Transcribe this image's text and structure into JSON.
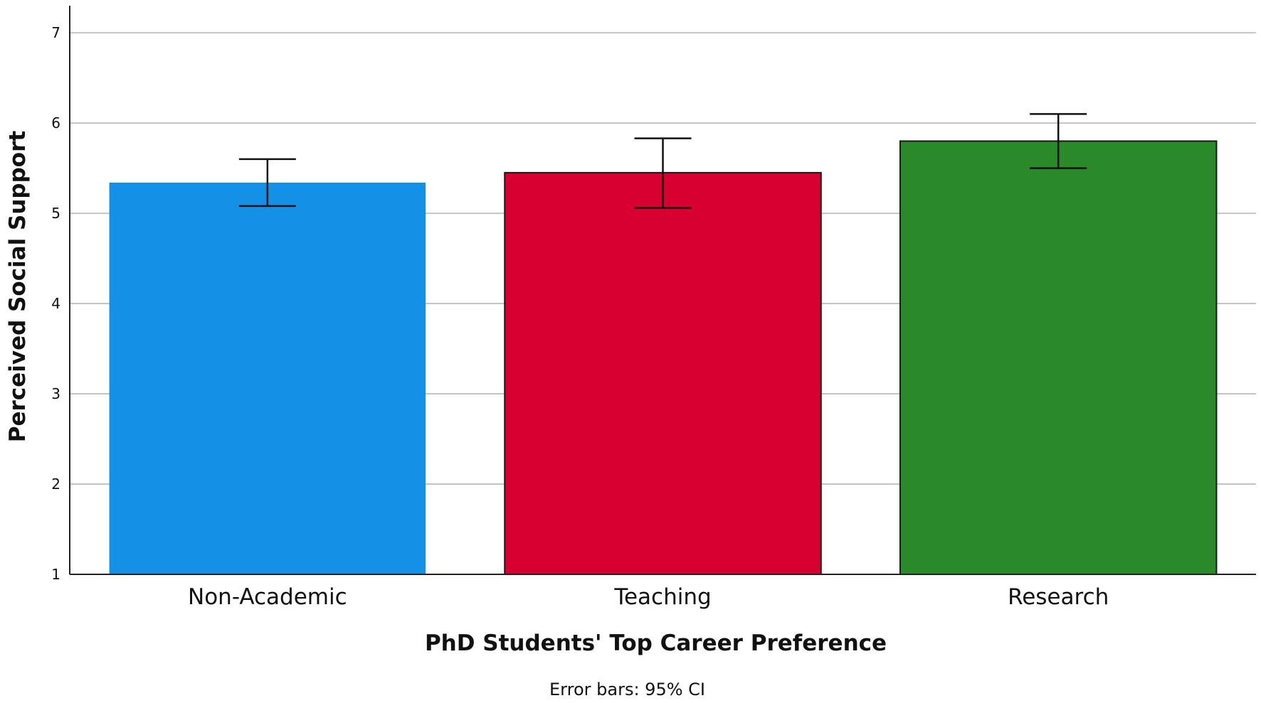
{
  "chart_data": {
    "type": "bar",
    "categories": [
      "Non-Academic",
      "Teaching",
      "Research"
    ],
    "values": [
      5.34,
      5.45,
      5.8
    ],
    "error_bars": [
      {
        "low": 5.08,
        "high": 5.6
      },
      {
        "low": 5.06,
        "high": 5.83
      },
      {
        "low": 5.5,
        "high": 6.1
      }
    ],
    "colors": [
      "#1490e6",
      "#d70030",
      "#2a8a2a"
    ],
    "xlabel": "PhD Students' Top Career Preference",
    "ylabel": "Perceived Social Support",
    "ylim": [
      1,
      7.3
    ],
    "yticks": [
      1,
      2,
      3,
      4,
      5,
      6,
      7
    ],
    "note": "Error bars: 95% CI",
    "grid": true,
    "legend": "none"
  }
}
